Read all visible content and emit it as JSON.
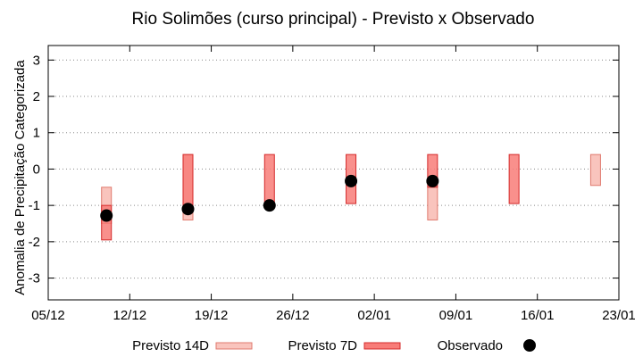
{
  "chart_data": {
    "type": "range-bar",
    "title": "Rio Solimões (curso principal) - Previsto x Observado",
    "xlabel": "",
    "ylabel": "Anomalia de Precipitação Categorizada",
    "x_tick_labels": [
      "05/12",
      "12/12",
      "19/12",
      "26/12",
      "02/01",
      "09/01",
      "16/01",
      "23/01"
    ],
    "x_tick_days": [
      0,
      7,
      14,
      21,
      28,
      35,
      42,
      49
    ],
    "xlim_days": [
      0,
      49
    ],
    "y_ticks": [
      3,
      2,
      1,
      0,
      -1,
      -2,
      -3
    ],
    "ylim": [
      -3.6,
      3.4
    ],
    "grid": "horizontal dotted",
    "legend_position": "bottom",
    "series": [
      {
        "name": "Previsto 14D",
        "kind": "range",
        "color": "#f9c4bd",
        "stroke": "#e07a6e",
        "points": [
          {
            "x_day": 5,
            "low": -1.5,
            "high": -0.5
          },
          {
            "x_day": 12,
            "low": -1.4,
            "high": 0.4
          },
          {
            "x_day": 33,
            "low": -1.4,
            "high": -0.5
          },
          {
            "x_day": 47,
            "low": -0.45,
            "high": 0.4
          }
        ]
      },
      {
        "name": "Previsto 7D",
        "kind": "range",
        "color": "#f87c78",
        "stroke": "#d42a2a",
        "points": [
          {
            "x_day": 5,
            "low": -1.95,
            "high": -1.0
          },
          {
            "x_day": 12,
            "low": -1.0,
            "high": 0.4
          },
          {
            "x_day": 19,
            "low": -1.0,
            "high": 0.4
          },
          {
            "x_day": 26,
            "low": -0.95,
            "high": 0.4
          },
          {
            "x_day": 33,
            "low": -0.5,
            "high": 0.4
          },
          {
            "x_day": 40,
            "low": -0.95,
            "high": 0.4
          }
        ]
      },
      {
        "name": "Observado",
        "kind": "point",
        "color": "#000000",
        "points": [
          {
            "x_day": 5,
            "y": -1.28
          },
          {
            "x_day": 12,
            "y": -1.1
          },
          {
            "x_day": 19,
            "y": -1.0
          },
          {
            "x_day": 26,
            "y": -0.33
          },
          {
            "x_day": 33,
            "y": -0.33
          }
        ]
      }
    ]
  }
}
